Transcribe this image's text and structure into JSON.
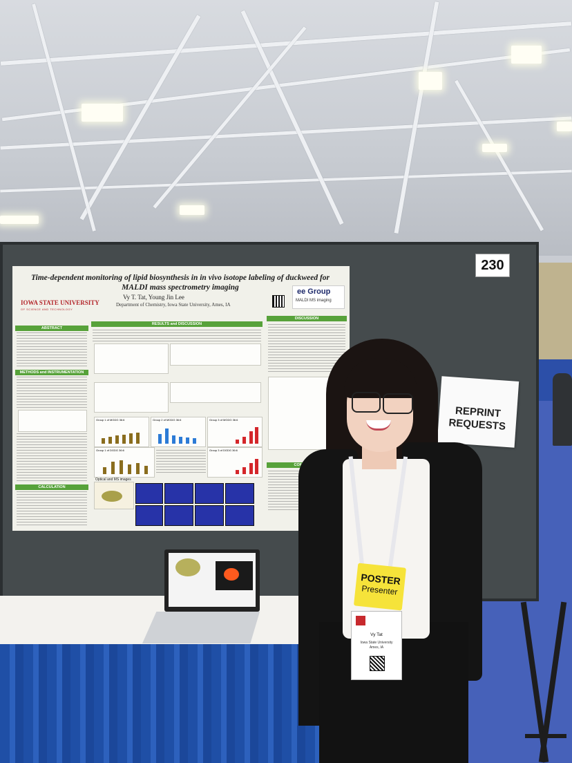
{
  "scene": {
    "board_number": "230",
    "poster": {
      "title_line1": "Time-dependent monitoring of lipid biosynthesis in in vivo isotope labeling of duckweed for",
      "title_line2": "MALDI mass spectrometry imaging",
      "authors": "Vy T. Tat, Young Jin Lee",
      "department": "Department of Chemistry, Iowa State University, Ames, IA",
      "university": "IOWA STATE UNIVERSITY",
      "university_sub": "OF SCIENCE AND TECHNOLOGY",
      "lab_logo": "ee Group",
      "lab_sub": "MALDI MS imaging",
      "sections": {
        "abstract": "ABSTRACT",
        "methods": "METHODS and INSTRUMENTATION",
        "calculation": "CALCULATION",
        "results": "RESULTS and DISCUSSION",
        "discussion": "DISCUSSION",
        "conclusion": "CONCLUSION"
      },
      "panel_labels": {
        "g1_mgdg": "Group 1 of MGDG 36:6",
        "g2_mgdg": "Group 2 of MGDG 36:6",
        "g3_mgdg": "Group 3 of MGDG 36:6",
        "g1_dgdg": "Group 1 of DGDG 36:6",
        "g3_dgdg": "Group 3 of DGDG 36:6",
        "optical": "Optical and MS images"
      }
    },
    "reprint_sign": {
      "line1": "REPRINT",
      "line2": "REQUESTS"
    },
    "badge": {
      "role_line1": "POSTER",
      "role_line2": "Presenter",
      "name": "Vy Tat",
      "institution": "Iowa State University",
      "city": "Ames, IA"
    }
  }
}
